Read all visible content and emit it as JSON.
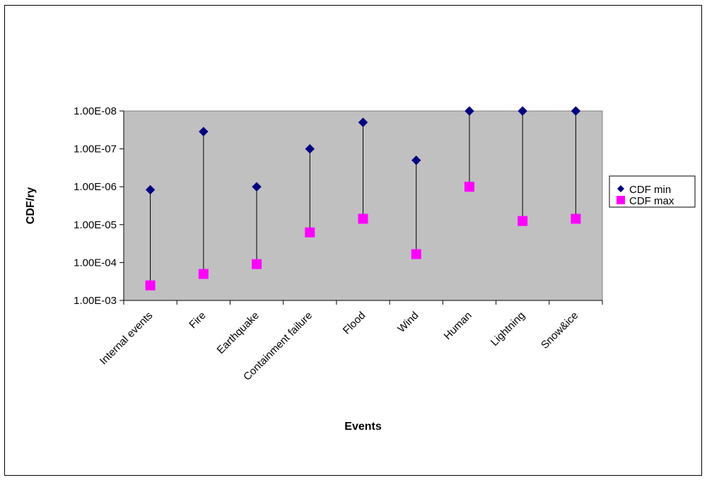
{
  "chart_data": {
    "type": "scatter",
    "categories": [
      "Internal events",
      "Fire",
      "Earthquake",
      "Containment failure",
      "Flood",
      "Wind",
      "Human",
      "Lightning",
      "Snow&ice"
    ],
    "y_tick_labels": [
      "1.00E-08",
      "1.00E-07",
      "1.00E-06",
      "1.00E-05",
      "1.00E-04",
      "1.00E-03"
    ],
    "y_scale": "log",
    "y_reversed": true,
    "ylim": [
      1e-08,
      0.001
    ],
    "series": [
      {
        "name": "CDF min",
        "marker": "diamond",
        "color": "#000080",
        "values": [
          1.2e-06,
          3.5e-08,
          1e-06,
          1e-07,
          2e-08,
          2e-07,
          1e-08,
          1e-08,
          1e-08
        ]
      },
      {
        "name": "CDF max",
        "marker": "square",
        "color": "#ff00ff",
        "values": [
          0.0004,
          0.0002,
          0.00011,
          1.6e-05,
          7e-06,
          6e-05,
          1e-06,
          8e-06,
          7e-06
        ]
      }
    ],
    "xlabel": "Events",
    "ylabel": "CDF/ry",
    "plot_background": "#c0c0c0",
    "legend_position": "right",
    "grid": false,
    "drop_lines": true
  }
}
